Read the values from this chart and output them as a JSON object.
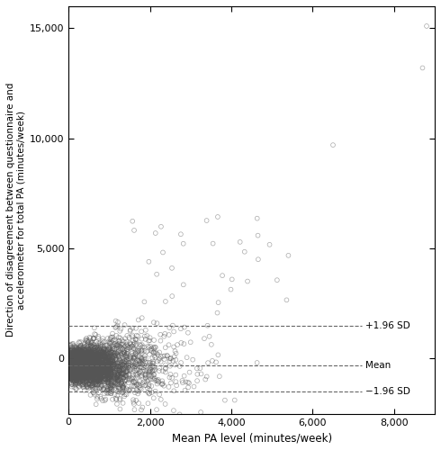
{
  "title": "",
  "xlabel": "Mean PA level (minutes/week)",
  "ylabel": "Direction of disagreement between questionnaire and\naccelerometer for total PA (minutes/week)",
  "xlim": [
    0,
    9000
  ],
  "ylim": [
    -2500,
    16000
  ],
  "xticks": [
    0,
    2000,
    4000,
    6000,
    8000
  ],
  "yticks": [
    0,
    5000,
    10000,
    15000
  ],
  "ytick_labels": [
    "0",
    "5,000",
    "10,000",
    "15,000"
  ],
  "xtick_labels": [
    "0",
    "2,000",
    "4,000",
    "6,000",
    "8,000"
  ],
  "mean_line": -300,
  "upper_loa": 1500,
  "lower_loa": -1500,
  "line_label_upper": "+1.96 SD",
  "line_label_mean": "Mean",
  "line_label_lower": "−1.96 SD",
  "line_color": "#666666",
  "marker_facecolor": "none",
  "marker_edgecolor": "#555555",
  "marker_size": 12,
  "marker_lw": 0.5,
  "marker_alpha": 0.5,
  "background_color": "#ffffff",
  "seed": 42,
  "figsize": [
    4.9,
    5.0
  ],
  "dpi": 100
}
